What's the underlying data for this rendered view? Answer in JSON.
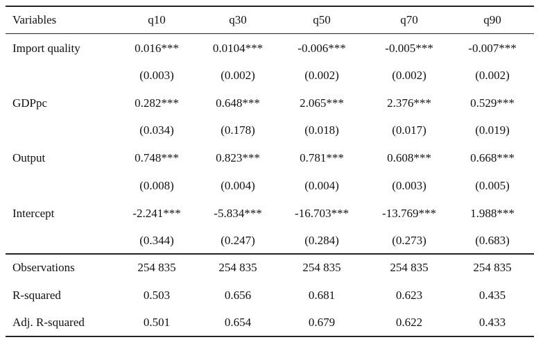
{
  "table": {
    "header": [
      "Variables",
      "q10",
      "q30",
      "q50",
      "q70",
      "q90"
    ],
    "coefficients": [
      {
        "label": "Import quality",
        "coef": [
          "0.016***",
          "0.0104***",
          "-0.006***",
          "-0.005***",
          "-0.007***"
        ],
        "se": [
          "(0.003)",
          "(0.002)",
          "(0.002)",
          "(0.002)",
          "(0.002)"
        ]
      },
      {
        "label": "GDPpc",
        "coef": [
          "0.282***",
          "0.648***",
          "2.065***",
          "2.376***",
          "0.529***"
        ],
        "se": [
          "(0.034)",
          "(0.178)",
          "(0.018)",
          "(0.017)",
          "(0.019)"
        ]
      },
      {
        "label": "Output",
        "coef": [
          "0.748***",
          "0.823***",
          "0.781***",
          "0.608***",
          "0.668***"
        ],
        "se": [
          "(0.008)",
          "(0.004)",
          "(0.004)",
          "(0.003)",
          "(0.005)"
        ]
      },
      {
        "label": "Intercept",
        "coef": [
          "-2.241***",
          "-5.834***",
          "-16.703***",
          "-13.769***",
          "1.988***"
        ],
        "se": [
          "(0.344)",
          "(0.247)",
          "(0.284)",
          "(0.273)",
          "(0.683)"
        ]
      }
    ],
    "stats": [
      {
        "label": "Observations",
        "values": [
          "254 835",
          "254 835",
          "254 835",
          "254 835",
          "254 835"
        ]
      },
      {
        "label": "R-squared",
        "values": [
          "0.503",
          "0.656",
          "0.681",
          "0.623",
          "0.435"
        ]
      },
      {
        "label": "Adj. R-squared",
        "values": [
          "0.501",
          "0.654",
          "0.679",
          "0.622",
          "0.433"
        ]
      }
    ]
  }
}
